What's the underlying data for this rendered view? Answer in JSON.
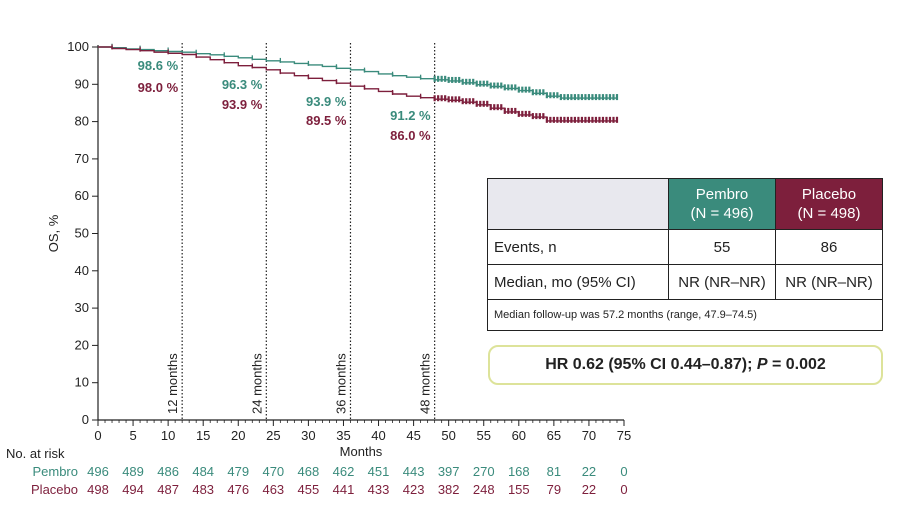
{
  "chart_data": {
    "type": "line",
    "xlabel": "Months",
    "ylabel": "OS, %",
    "xlim": [
      0,
      75
    ],
    "ylim": [
      0,
      100
    ],
    "x_ticks": [
      0,
      5,
      10,
      15,
      20,
      25,
      30,
      35,
      40,
      45,
      50,
      55,
      60,
      65,
      70,
      75
    ],
    "y_ticks": [
      0,
      10,
      20,
      30,
      40,
      50,
      60,
      70,
      80,
      90,
      100
    ],
    "colors": {
      "pembro": "#3a8b7c",
      "placebo": "#7d1f3c"
    },
    "series": [
      {
        "name": "Pembro",
        "key": "pembro",
        "x": [
          0,
          2,
          4,
          6,
          8,
          10,
          12,
          14,
          16,
          18,
          20,
          22,
          24,
          26,
          28,
          30,
          32,
          34,
          36,
          38,
          40,
          42,
          44,
          46,
          48,
          50,
          52,
          54,
          56,
          58,
          60,
          62,
          64,
          66,
          68,
          70,
          72,
          74
        ],
        "y": [
          100,
          99.8,
          99.5,
          99.3,
          99.0,
          98.8,
          98.6,
          98.2,
          97.9,
          97.5,
          97.1,
          96.7,
          96.3,
          96.0,
          95.6,
          95.2,
          94.8,
          94.3,
          93.9,
          93.4,
          92.8,
          92.3,
          91.9,
          91.5,
          91.2,
          90.9,
          90.4,
          89.9,
          89.4,
          88.9,
          88.3,
          87.6,
          86.8,
          86.3,
          86.3,
          86.3,
          86.3,
          86.3
        ],
        "labels": [
          {
            "x": 12,
            "text": "98.6 %"
          },
          {
            "x": 24,
            "text": "96.3 %"
          },
          {
            "x": 36,
            "text": "93.9 %"
          },
          {
            "x": 48,
            "text": "91.2 %"
          }
        ]
      },
      {
        "name": "Placebo",
        "key": "placebo",
        "x": [
          0,
          2,
          4,
          6,
          8,
          10,
          12,
          14,
          16,
          18,
          20,
          22,
          24,
          26,
          28,
          30,
          32,
          34,
          36,
          38,
          40,
          42,
          44,
          46,
          48,
          50,
          52,
          54,
          56,
          58,
          60,
          62,
          64,
          66,
          68,
          70,
          72,
          74
        ],
        "y": [
          100,
          99.6,
          99.3,
          99.0,
          98.6,
          98.3,
          98.0,
          97.3,
          96.6,
          95.8,
          95.0,
          94.5,
          93.9,
          93.0,
          92.3,
          91.6,
          91.0,
          90.3,
          89.5,
          88.8,
          88.1,
          87.4,
          86.8,
          86.4,
          86.0,
          85.7,
          85.2,
          84.5,
          83.6,
          82.6,
          81.8,
          81.2,
          80.2,
          80.2,
          80.2,
          80.2,
          80.2,
          80.2
        ],
        "labels": [
          {
            "x": 12,
            "text": "98.0 %"
          },
          {
            "x": 24,
            "text": "93.9 %"
          },
          {
            "x": 36,
            "text": "89.5 %"
          },
          {
            "x": 48,
            "text": "86.0 %"
          }
        ]
      }
    ],
    "reference_lines": [
      {
        "x": 12,
        "label": "12 months"
      },
      {
        "x": 24,
        "label": "24 months"
      },
      {
        "x": 36,
        "label": "36 months"
      },
      {
        "x": 48,
        "label": "48 months"
      }
    ],
    "risk_table": {
      "title": "No. at risk",
      "times": [
        0,
        5,
        10,
        15,
        20,
        25,
        30,
        35,
        40,
        45,
        50,
        55,
        60,
        65,
        70,
        75
      ],
      "rows": [
        {
          "name": "Pembro",
          "key": "pembro",
          "values": [
            496,
            489,
            486,
            484,
            479,
            470,
            468,
            462,
            451,
            443,
            397,
            270,
            168,
            81,
            22,
            0
          ]
        },
        {
          "name": "Placebo",
          "key": "placebo",
          "values": [
            498,
            494,
            487,
            483,
            476,
            463,
            455,
            441,
            433,
            423,
            382,
            248,
            155,
            79,
            22,
            0
          ]
        }
      ]
    }
  },
  "summary_table": {
    "pembro_header": {
      "name": "Pembro",
      "n": "(N = 496)"
    },
    "placebo_header": {
      "name": "Placebo",
      "n": "(N = 498)"
    },
    "events_label": "Events, n",
    "events_pembro": "55",
    "events_placebo": "86",
    "median_label": "Median, mo (95% CI)",
    "median_pembro": "NR (NR–NR)",
    "median_placebo": "NR (NR–NR)",
    "footnote": "Median follow-up was 57.2 months (range, 47.9–74.5)"
  },
  "hr": {
    "prefix": "HR 0.62 (95% CI 0.44–0.87); ",
    "p_label": "P",
    "suffix": " = 0.002"
  }
}
